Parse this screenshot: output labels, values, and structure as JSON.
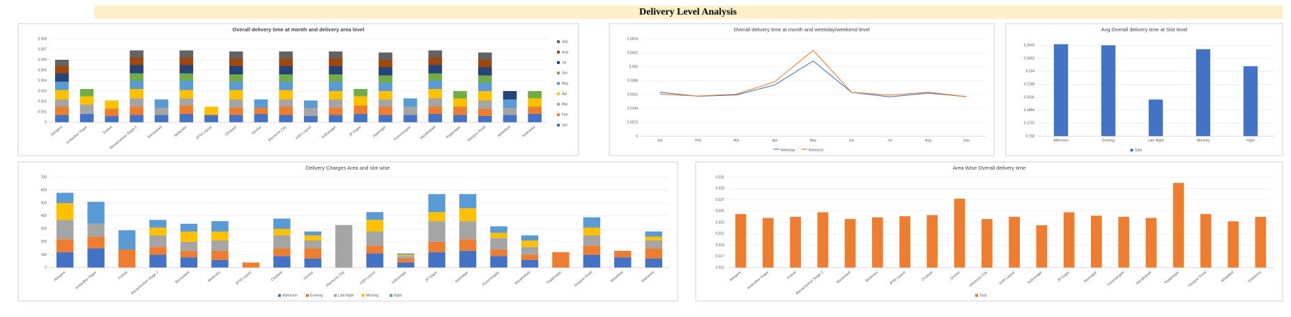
{
  "page_title": "Delivery Level Analysis",
  "chart_data": [
    {
      "type": "stacked_bar",
      "title": "Overall delivery time at month and delivery area level",
      "legend": "right",
      "grid": true,
      "categories": [
        "Abbigere",
        "Ambedkar Nagar",
        "Anekal",
        "Banashankari Stage 2",
        "Banaswadi",
        "Bellandur",
        "BTM Layout",
        "Chickpet",
        "Domlur",
        "Electronic City",
        "HSR Layout",
        "Indiranagar",
        "JP Nagar",
        "Jayanagar",
        "Koramangala",
        "Marathahalli",
        "Rajajinagar",
        "Sarjapur Road",
        "Whitefield",
        "Yelahanka"
      ],
      "ylim": [
        0,
        0.008
      ],
      "yticks": [
        0,
        0.001,
        0.002,
        0.003,
        0.004,
        0.005,
        0.006,
        0.007,
        0.008
      ],
      "series": [
        {
          "name": "Jan",
          "color": "#4472c4",
          "values": [
            0.0007,
            0.0008,
            0.0006,
            0.0007,
            0.0007,
            0.0008,
            0.0007,
            0.0007,
            0.0008,
            0.0007,
            0.0006,
            0.0007,
            0.0008,
            0.0007,
            0.0007,
            0.0008,
            0.0007,
            0.0006,
            0.0007,
            0.0008
          ]
        },
        {
          "name": "Feb",
          "color": "#ed7d31",
          "values": [
            0.0008,
            0,
            0.0007,
            0.0008,
            0,
            0.0008,
            0,
            0.0007,
            0.0006,
            0.0008,
            0,
            0.0007,
            0.0008,
            0.0008,
            0,
            0.0007,
            0.0008,
            0.0007,
            0,
            0.0007
          ]
        },
        {
          "name": "Mar",
          "color": "#a5a5a5",
          "values": [
            0.0007,
            0.0009,
            0,
            0.0008,
            0.0007,
            0.0007,
            0,
            0.0008,
            0,
            0.0007,
            0.0008,
            0.0008,
            0,
            0.0007,
            0.0008,
            0.0008,
            0,
            0.0008,
            0.0007,
            0
          ]
        },
        {
          "name": "Apr",
          "color": "#ffc000",
          "values": [
            0.0009,
            0.0008,
            0.0008,
            0.0009,
            0,
            0.0008,
            0.0008,
            0.0009,
            0,
            0.0009,
            0,
            0.0008,
            0.0009,
            0.0008,
            0,
            0.0009,
            0.0008,
            0.0009,
            0,
            0.0008
          ]
        },
        {
          "name": "May",
          "color": "#5b9bd5",
          "values": [
            0.0008,
            0,
            0,
            0.0008,
            0.0008,
            0.0009,
            0,
            0.0008,
            0.0008,
            0.0008,
            0.0007,
            0.0009,
            0,
            0.0008,
            0.0008,
            0.0008,
            0,
            0.0008,
            0.0008,
            0
          ]
        },
        {
          "name": "Jun",
          "color": "#70ad47",
          "values": [
            0,
            0.0007,
            0,
            0.0007,
            0,
            0.0007,
            0,
            0.0007,
            0,
            0.0007,
            0,
            0.0007,
            0.0007,
            0.0007,
            0,
            0.0007,
            0.0007,
            0.0007,
            0,
            0.0007
          ]
        },
        {
          "name": "Jul",
          "color": "#264478",
          "values": [
            0.0008,
            0,
            0,
            0.0008,
            0,
            0.0008,
            0,
            0.0008,
            0,
            0.0008,
            0,
            0.0008,
            0,
            0.0008,
            0,
            0.0008,
            0,
            0.0008,
            0.0008,
            0
          ]
        },
        {
          "name": "Aug",
          "color": "#9e480e",
          "values": [
            0.0007,
            0,
            0,
            0.0007,
            0,
            0.0007,
            0,
            0.0007,
            0,
            0.0007,
            0,
            0.0007,
            0,
            0.0007,
            0,
            0.0007,
            0,
            0.0007,
            0,
            0
          ]
        },
        {
          "name": "Sep",
          "color": "#636363",
          "values": [
            0.0006,
            0,
            0,
            0.0007,
            0,
            0.0007,
            0,
            0.0007,
            0,
            0.0007,
            0,
            0.0007,
            0,
            0.0007,
            0,
            0.0007,
            0,
            0.0007,
            0,
            0
          ]
        }
      ]
    },
    {
      "type": "line",
      "title": "Overall delivery time at month and weekday/weekend level",
      "legend": "bottom",
      "grid": true,
      "categories": [
        "Jan",
        "Feb",
        "Mar",
        "Apr",
        "May",
        "Jun",
        "Jul",
        "Aug",
        "Sep"
      ],
      "ylim": [
        0,
        0.0504
      ],
      "yticks": [
        0,
        0.0072,
        0.0144,
        0.0216,
        0.0288,
        0.036,
        0.0432,
        0.0504
      ],
      "series": [
        {
          "name": "Weekday",
          "color": "#4472c4",
          "values": [
            0.0228,
            0.0207,
            0.0214,
            0.0266,
            0.039,
            0.0228,
            0.0204,
            0.0224,
            0.0205
          ]
        },
        {
          "name": "Weekend",
          "color": "#ed7d31",
          "values": [
            0.0218,
            0.0208,
            0.0218,
            0.0282,
            0.0445,
            0.0228,
            0.0213,
            0.0228,
            0.0205
          ]
        }
      ]
    },
    {
      "type": "bar",
      "title": "Avg Overall delivery time at Slot level",
      "legend": "bottom",
      "grid": true,
      "categories": [
        "Afternoon",
        "Evening",
        "Late Night",
        "Morning",
        "Night"
      ],
      "ylim": [
        0.158,
        0.272
      ],
      "yticks": [
        0.158,
        0.1732,
        0.1884,
        0.2036,
        0.2188,
        0.234,
        0.2492,
        0.2644
      ],
      "series": [
        {
          "name": "Total",
          "color": "#4472c4",
          "values": [
            0.2658,
            0.2645,
            0.201,
            0.26,
            0.24
          ]
        }
      ]
    },
    {
      "type": "stacked_bar",
      "title": "Delivery Charges Area and slot wise",
      "legend": "bottom",
      "grid": true,
      "categories": [
        "Abbigere",
        "Ambedkar Nagar",
        "Anekal",
        "Banashankari Stage 2",
        "Banaswadi",
        "Bellandur",
        "BTM Layout",
        "Chickpet",
        "Domlur",
        "Electronic City",
        "HSR Layout",
        "Indiranagar",
        "JP Nagar",
        "Jayanagar",
        "Koramangala",
        "Marathahalli",
        "Rajajinagar",
        "Sarjapur Road",
        "Whitefield",
        "Yelahanka"
      ],
      "ylim": [
        0,
        700
      ],
      "yticks": [
        0,
        100,
        200,
        300,
        400,
        500,
        600,
        700
      ],
      "series": [
        {
          "name": "Afternoon",
          "color": "#4472c4",
          "values": [
            120,
            150,
            0,
            100,
            80,
            60,
            0,
            90,
            70,
            0,
            110,
            40,
            120,
            130,
            90,
            60,
            0,
            100,
            80,
            70
          ]
        },
        {
          "name": "Evening",
          "color": "#ed7d31",
          "values": [
            100,
            90,
            140,
            60,
            50,
            70,
            40,
            60,
            80,
            0,
            60,
            30,
            80,
            90,
            50,
            40,
            120,
            70,
            50,
            80
          ]
        },
        {
          "name": "Late Night",
          "color": "#a5a5a5",
          "values": [
            150,
            100,
            0,
            90,
            70,
            80,
            0,
            100,
            60,
            330,
            110,
            20,
            160,
            140,
            90,
            60,
            0,
            80,
            0,
            60
          ]
        },
        {
          "name": "Morning",
          "color": "#ffc000",
          "values": [
            130,
            0,
            0,
            60,
            80,
            70,
            0,
            50,
            40,
            0,
            90,
            10,
            70,
            100,
            40,
            50,
            0,
            60,
            0,
            30
          ]
        },
        {
          "name": "Night",
          "color": "#5b9bd5",
          "values": [
            80,
            170,
            150,
            60,
            60,
            80,
            0,
            80,
            30,
            0,
            60,
            10,
            140,
            110,
            50,
            40,
            0,
            80,
            0,
            40
          ]
        }
      ]
    },
    {
      "type": "bar",
      "title": "Area Wise Overall delivery time",
      "legend": "bottom",
      "grid": true,
      "categories": [
        "Abbigere",
        "Ambedkar Nagar",
        "Anekal",
        "Banashankari Stage 2",
        "Banaswadi",
        "Bellandur",
        "BTM Layout",
        "Chickpet",
        "Domlur",
        "Electronic City",
        "HSR Layout",
        "Indiranagar",
        "JP Nagar",
        "Jayanagar",
        "Koramangala",
        "Marathahalli",
        "Rajajinagar",
        "Sarjapur Road",
        "Whitefield",
        "Yelahanka"
      ],
      "ylim": [
        0.015,
        0.031
      ],
      "yticks": [
        0.015,
        0.017,
        0.019,
        0.021,
        0.023,
        0.025,
        0.027,
        0.029,
        0.031
      ],
      "series": [
        {
          "name": "Total",
          "color": "#ed7d31",
          "values": [
            0.0245,
            0.0238,
            0.024,
            0.0248,
            0.0236,
            0.0239,
            0.0241,
            0.0243,
            0.0272,
            0.0236,
            0.024,
            0.0225,
            0.0248,
            0.0242,
            0.024,
            0.0238,
            0.03,
            0.0245,
            0.0232,
            0.024
          ]
        }
      ]
    }
  ]
}
